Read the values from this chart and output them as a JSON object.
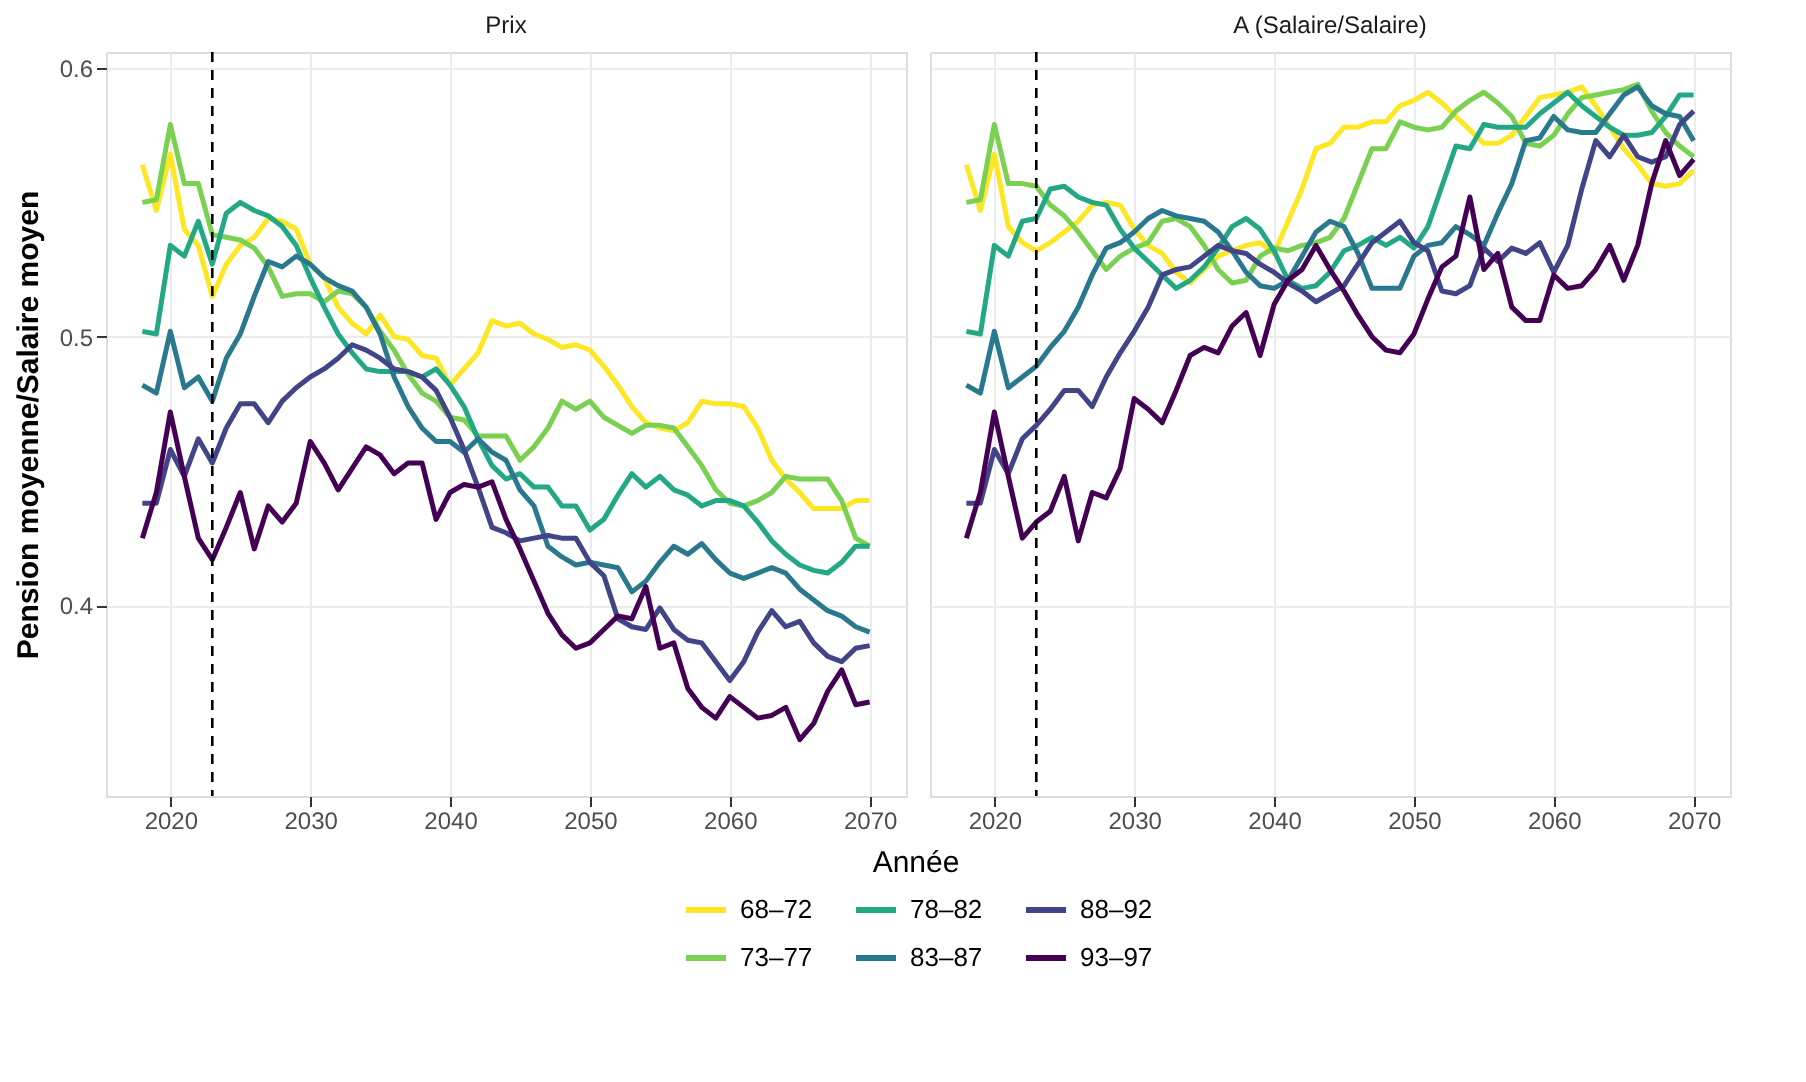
{
  "chart_data": [
    {
      "type": "line",
      "title": "Prix",
      "xlabel": "Année",
      "ylabel": "Pension moyenne/Salaire moyen",
      "xlim": [
        2015.4,
        2072.6
      ],
      "xticks": [
        2020,
        2030,
        2040,
        2050,
        2060,
        2070
      ],
      "ylim": [
        0.329,
        0.606
      ],
      "yticks": [
        0.4,
        0.5,
        0.6
      ],
      "grid": true,
      "legend": "bottom",
      "line_style": "solid",
      "x": [
        2018,
        2019,
        2020,
        2021,
        2022,
        2023,
        2024,
        2025,
        2026,
        2027,
        2028,
        2029,
        2030,
        2031,
        2032,
        2033,
        2034,
        2035,
        2036,
        2037,
        2038,
        2039,
        2040,
        2041,
        2042,
        2043,
        2044,
        2045,
        2046,
        2047,
        2048,
        2049,
        2050,
        2051,
        2052,
        2053,
        2054,
        2055,
        2056,
        2057,
        2058,
        2059,
        2060,
        2061,
        2062,
        2063,
        2064,
        2065,
        2066,
        2067,
        2068,
        2069,
        2070
      ],
      "ref_lines": [
        {
          "axis": "x",
          "value": 2023,
          "color": "#000000",
          "line_style": "dashed"
        }
      ],
      "series": [
        {
          "name": "68–72",
          "color": "#fde725",
          "values": [
            0.564,
            0.547,
            0.568,
            0.54,
            0.534,
            0.515,
            0.527,
            0.534,
            0.537,
            0.544,
            0.543,
            0.54,
            0.527,
            0.522,
            0.511,
            0.505,
            0.501,
            0.508,
            0.5,
            0.499,
            0.493,
            0.492,
            0.482,
            0.488,
            0.494,
            0.506,
            0.504,
            0.505,
            0.501,
            0.499,
            0.496,
            0.497,
            0.495,
            0.489,
            0.482,
            0.474,
            0.468,
            0.466,
            0.465,
            0.468,
            0.476,
            0.475,
            0.475,
            0.474,
            0.466,
            0.454,
            0.447,
            0.442,
            0.436,
            0.436,
            0.436,
            0.439,
            0.439
          ]
        },
        {
          "name": "73–77",
          "color": "#7ad151",
          "values": [
            0.55,
            0.551,
            0.579,
            0.557,
            0.557,
            0.538,
            0.537,
            0.536,
            0.533,
            0.526,
            0.515,
            0.516,
            0.516,
            0.513,
            0.517,
            0.516,
            0.511,
            0.502,
            0.495,
            0.486,
            0.479,
            0.476,
            0.47,
            0.469,
            0.463,
            0.463,
            0.463,
            0.454,
            0.459,
            0.466,
            0.476,
            0.473,
            0.476,
            0.47,
            0.467,
            0.464,
            0.467,
            0.467,
            0.466,
            0.459,
            0.452,
            0.443,
            0.438,
            0.437,
            0.439,
            0.442,
            0.448,
            0.447,
            0.447,
            0.447,
            0.439,
            0.425,
            0.422
          ]
        },
        {
          "name": "78–82",
          "color": "#22a884",
          "values": [
            0.502,
            0.501,
            0.534,
            0.53,
            0.543,
            0.527,
            0.546,
            0.55,
            0.547,
            0.545,
            0.541,
            0.534,
            0.522,
            0.511,
            0.501,
            0.494,
            0.488,
            0.487,
            0.487,
            0.487,
            0.485,
            0.488,
            0.482,
            0.474,
            0.462,
            0.452,
            0.447,
            0.449,
            0.444,
            0.444,
            0.437,
            0.437,
            0.428,
            0.432,
            0.441,
            0.449,
            0.444,
            0.448,
            0.443,
            0.441,
            0.437,
            0.439,
            0.439,
            0.437,
            0.431,
            0.424,
            0.419,
            0.415,
            0.413,
            0.412,
            0.416,
            0.422,
            0.422
          ]
        },
        {
          "name": "83–87",
          "color": "#2a788e",
          "values": [
            0.482,
            0.479,
            0.502,
            0.481,
            0.485,
            0.476,
            0.492,
            0.501,
            0.515,
            0.528,
            0.526,
            0.53,
            0.527,
            0.522,
            0.519,
            0.517,
            0.511,
            0.501,
            0.485,
            0.474,
            0.466,
            0.461,
            0.461,
            0.457,
            0.462,
            0.457,
            0.454,
            0.443,
            0.437,
            0.422,
            0.418,
            0.415,
            0.416,
            0.415,
            0.414,
            0.405,
            0.409,
            0.416,
            0.422,
            0.419,
            0.423,
            0.417,
            0.412,
            0.41,
            0.412,
            0.414,
            0.412,
            0.406,
            0.402,
            0.398,
            0.396,
            0.392,
            0.39
          ]
        },
        {
          "name": "88–92",
          "color": "#414487",
          "values": [
            0.438,
            0.438,
            0.458,
            0.448,
            0.462,
            0.453,
            0.466,
            0.475,
            0.475,
            0.468,
            0.476,
            0.481,
            0.485,
            0.488,
            0.492,
            0.497,
            0.495,
            0.492,
            0.488,
            0.487,
            0.485,
            0.48,
            0.47,
            0.458,
            0.444,
            0.429,
            0.427,
            0.424,
            0.425,
            0.426,
            0.425,
            0.425,
            0.416,
            0.411,
            0.395,
            0.392,
            0.391,
            0.399,
            0.391,
            0.387,
            0.386,
            0.379,
            0.372,
            0.379,
            0.39,
            0.398,
            0.392,
            0.394,
            0.386,
            0.381,
            0.379,
            0.384,
            0.385
          ]
        },
        {
          "name": "93–97",
          "color": "#440154",
          "values": [
            0.425,
            0.442,
            0.472,
            0.448,
            0.425,
            0.417,
            0.429,
            0.442,
            0.421,
            0.437,
            0.431,
            0.438,
            0.461,
            0.453,
            0.443,
            0.451,
            0.459,
            0.456,
            0.449,
            0.453,
            0.453,
            0.432,
            0.442,
            0.445,
            0.444,
            0.446,
            0.432,
            0.421,
            0.409,
            0.397,
            0.389,
            0.384,
            0.386,
            0.391,
            0.396,
            0.395,
            0.407,
            0.384,
            0.386,
            0.369,
            0.362,
            0.358,
            0.366,
            0.362,
            0.358,
            0.359,
            0.362,
            0.35,
            0.356,
            0.368,
            0.376,
            0.363,
            0.364
          ]
        }
      ]
    },
    {
      "type": "line",
      "title": "A (Salaire/Salaire)",
      "xlim": [
        2015.4,
        2072.6
      ],
      "xticks": [
        2020,
        2030,
        2040,
        2050,
        2060,
        2070
      ],
      "ylim": [
        0.329,
        0.606
      ],
      "yticks": [
        0.4,
        0.5,
        0.6
      ],
      "grid": true,
      "tick_labels": "x",
      "line_style": "solid",
      "x": [
        2018,
        2019,
        2020,
        2021,
        2022,
        2023,
        2024,
        2025,
        2026,
        2027,
        2028,
        2029,
        2030,
        2031,
        2032,
        2033,
        2034,
        2035,
        2036,
        2037,
        2038,
        2039,
        2040,
        2041,
        2042,
        2043,
        2044,
        2045,
        2046,
        2047,
        2048,
        2049,
        2050,
        2051,
        2052,
        2053,
        2054,
        2055,
        2056,
        2057,
        2058,
        2059,
        2060,
        2061,
        2062,
        2063,
        2064,
        2065,
        2066,
        2067,
        2068,
        2069,
        2070
      ],
      "ref_lines": [
        {
          "axis": "x",
          "value": 2023,
          "color": "#000000",
          "line_style": "dashed"
        }
      ],
      "series": [
        {
          "name": "68–72",
          "color": "#fde725",
          "values": [
            0.564,
            0.547,
            0.568,
            0.541,
            0.535,
            0.532,
            0.535,
            0.539,
            0.543,
            0.549,
            0.55,
            0.549,
            0.54,
            0.534,
            0.531,
            0.524,
            0.52,
            0.525,
            0.53,
            0.532,
            0.534,
            0.535,
            0.531,
            0.543,
            0.555,
            0.57,
            0.572,
            0.578,
            0.578,
            0.58,
            0.58,
            0.586,
            0.588,
            0.591,
            0.587,
            0.582,
            0.577,
            0.572,
            0.572,
            0.575,
            0.582,
            0.589,
            0.59,
            0.591,
            0.593,
            0.586,
            0.578,
            0.57,
            0.564,
            0.557,
            0.556,
            0.557,
            0.562
          ]
        },
        {
          "name": "73–77",
          "color": "#7ad151",
          "values": [
            0.55,
            0.551,
            0.579,
            0.557,
            0.557,
            0.556,
            0.549,
            0.545,
            0.539,
            0.532,
            0.525,
            0.53,
            0.533,
            0.535,
            0.543,
            0.544,
            0.541,
            0.534,
            0.525,
            0.52,
            0.521,
            0.53,
            0.533,
            0.532,
            0.534,
            0.535,
            0.537,
            0.544,
            0.557,
            0.57,
            0.57,
            0.58,
            0.578,
            0.577,
            0.578,
            0.584,
            0.588,
            0.591,
            0.587,
            0.582,
            0.572,
            0.571,
            0.575,
            0.583,
            0.589,
            0.59,
            0.591,
            0.592,
            0.594,
            0.584,
            0.576,
            0.571,
            0.567
          ]
        },
        {
          "name": "78–82",
          "color": "#22a884",
          "values": [
            0.502,
            0.501,
            0.534,
            0.53,
            0.543,
            0.544,
            0.555,
            0.556,
            0.552,
            0.55,
            0.549,
            0.54,
            0.533,
            0.528,
            0.523,
            0.518,
            0.521,
            0.526,
            0.533,
            0.541,
            0.544,
            0.54,
            0.532,
            0.521,
            0.518,
            0.519,
            0.524,
            0.532,
            0.534,
            0.537,
            0.534,
            0.537,
            0.533,
            0.541,
            0.556,
            0.571,
            0.57,
            0.579,
            0.578,
            0.578,
            0.578,
            0.583,
            0.587,
            0.591,
            0.586,
            0.582,
            0.578,
            0.575,
            0.575,
            0.576,
            0.582,
            0.59,
            0.59
          ]
        },
        {
          "name": "83–87",
          "color": "#2a788e",
          "values": [
            0.482,
            0.479,
            0.502,
            0.481,
            0.485,
            0.489,
            0.496,
            0.502,
            0.511,
            0.523,
            0.533,
            0.535,
            0.539,
            0.544,
            0.547,
            0.545,
            0.544,
            0.543,
            0.539,
            0.532,
            0.524,
            0.519,
            0.518,
            0.521,
            0.53,
            0.539,
            0.543,
            0.541,
            0.531,
            0.518,
            0.518,
            0.518,
            0.53,
            0.534,
            0.535,
            0.541,
            0.538,
            0.534,
            0.546,
            0.557,
            0.573,
            0.574,
            0.582,
            0.577,
            0.576,
            0.576,
            0.583,
            0.59,
            0.593,
            0.586,
            0.583,
            0.582,
            0.573
          ]
        },
        {
          "name": "88–92",
          "color": "#414487",
          "values": [
            0.438,
            0.438,
            0.458,
            0.449,
            0.462,
            0.467,
            0.473,
            0.48,
            0.48,
            0.474,
            0.485,
            0.494,
            0.502,
            0.511,
            0.523,
            0.525,
            0.526,
            0.53,
            0.534,
            0.532,
            0.531,
            0.527,
            0.524,
            0.52,
            0.517,
            0.513,
            0.516,
            0.519,
            0.527,
            0.535,
            0.539,
            0.543,
            0.535,
            0.532,
            0.517,
            0.516,
            0.519,
            0.533,
            0.528,
            0.533,
            0.531,
            0.535,
            0.524,
            0.534,
            0.555,
            0.573,
            0.567,
            0.575,
            0.567,
            0.565,
            0.567,
            0.579,
            0.584
          ]
        },
        {
          "name": "93–97",
          "color": "#440154",
          "values": [
            0.425,
            0.442,
            0.472,
            0.448,
            0.425,
            0.431,
            0.435,
            0.448,
            0.424,
            0.442,
            0.44,
            0.451,
            0.477,
            0.473,
            0.468,
            0.48,
            0.493,
            0.496,
            0.494,
            0.504,
            0.509,
            0.493,
            0.512,
            0.521,
            0.525,
            0.534,
            0.525,
            0.517,
            0.508,
            0.5,
            0.495,
            0.494,
            0.501,
            0.514,
            0.526,
            0.53,
            0.552,
            0.525,
            0.531,
            0.511,
            0.506,
            0.506,
            0.523,
            0.518,
            0.519,
            0.525,
            0.534,
            0.521,
            0.534,
            0.557,
            0.573,
            0.56,
            0.566
          ]
        }
      ]
    }
  ]
}
